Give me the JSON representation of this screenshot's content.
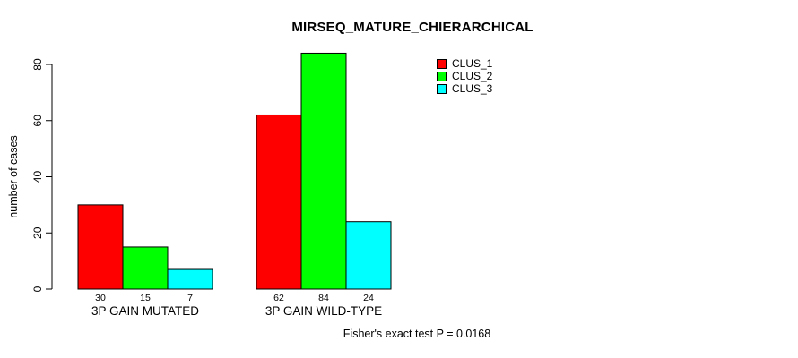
{
  "chart_data": {
    "type": "bar",
    "title": "MIRSEQ_MATURE_CHIERARCHICAL",
    "ylabel": "number of cases",
    "xlabel": "",
    "categories": [
      "3P GAIN MUTATED",
      "3P GAIN WILD-TYPE"
    ],
    "series": [
      {
        "name": "CLUS_1",
        "color": "#ff0000",
        "values": [
          30,
          62
        ]
      },
      {
        "name": "CLUS_2",
        "color": "#00ff00",
        "values": [
          15,
          84
        ]
      },
      {
        "name": "CLUS_3",
        "color": "#00ffff",
        "values": [
          7,
          24
        ]
      }
    ],
    "bar_value_labels": [
      [
        "30",
        "15",
        "7"
      ],
      [
        "62",
        "84",
        "24"
      ]
    ],
    "yticks": [
      "0",
      "20",
      "40",
      "60",
      "80"
    ],
    "ylim": [
      0,
      84
    ],
    "grid": false,
    "legend_position": "top-right",
    "annotation": "Fisher's exact test P = 0.0168"
  },
  "colors": {
    "background": "#ffffff",
    "axis": "#000000",
    "bar_border": "#000000",
    "text": "#000000"
  }
}
